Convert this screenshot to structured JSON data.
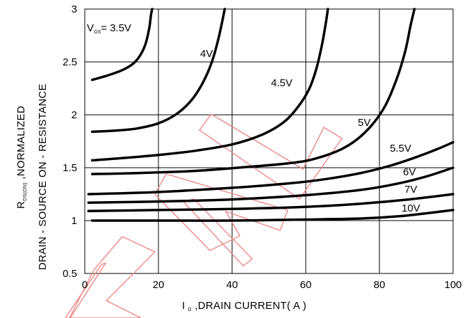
{
  "chart_data": {
    "type": "line",
    "xlabel": {
      "main": "I",
      "sub": "D",
      "rest": " ,DRAIN CURRENT( A )"
    },
    "ylabel": {
      "line1_main": "R",
      "line1_sub": "DS(ON)",
      "line1_rest": " ,NORMALIZED",
      "line2": "DRAIN - SOURCE ON - RESISTANCE"
    },
    "xlim": [
      0,
      100
    ],
    "ylim": [
      0.5,
      3
    ],
    "x_ticks": [
      0,
      20,
      40,
      60,
      80,
      100
    ],
    "y_ticks": [
      0.5,
      1,
      1.5,
      2,
      2.5,
      3
    ],
    "y_tick_labels": [
      "0.5",
      "1",
      "1.5",
      "2",
      "2.5",
      "3"
    ],
    "grid": true,
    "line_color": "#000000",
    "series": [
      {
        "name": "V_GS = 3.5V",
        "label": {
          "main": "V",
          "sub": "GS",
          "rest": "= 3.5V"
        },
        "x": [
          2,
          6,
          10,
          13,
          15,
          16.5,
          17.5,
          18,
          18.3
        ],
        "y": [
          2.33,
          2.37,
          2.42,
          2.48,
          2.56,
          2.67,
          2.82,
          2.95,
          3.0
        ]
      },
      {
        "name": "4V",
        "label": {
          "main": "4V"
        },
        "x": [
          2,
          8,
          14,
          20,
          25,
          29,
          32,
          34.5,
          36.5,
          38
        ],
        "y": [
          1.84,
          1.85,
          1.87,
          1.92,
          2.01,
          2.14,
          2.3,
          2.5,
          2.75,
          3.0
        ]
      },
      {
        "name": "4.5V",
        "label": {
          "main": "4.5V"
        },
        "x": [
          2,
          10,
          20,
          30,
          40,
          48,
          54,
          58,
          61,
          63,
          64.5,
          65.5,
          66
        ],
        "y": [
          1.57,
          1.59,
          1.62,
          1.66,
          1.72,
          1.81,
          1.93,
          2.08,
          2.25,
          2.45,
          2.68,
          2.88,
          3.0
        ]
      },
      {
        "name": "5V",
        "label": {
          "main": "5V"
        },
        "x": [
          2,
          15,
          30,
          45,
          55,
          62,
          70,
          76,
          81,
          84.5,
          87,
          88.5,
          89.5
        ],
        "y": [
          1.44,
          1.45,
          1.47,
          1.51,
          1.54,
          1.58,
          1.68,
          1.83,
          2.05,
          2.32,
          2.6,
          2.85,
          3.0
        ]
      },
      {
        "name": "5.5V",
        "label": {
          "main": "5.5V"
        },
        "x": [
          1,
          20,
          40,
          55,
          65,
          75,
          83,
          90,
          96,
          100
        ],
        "y": [
          1.25,
          1.27,
          1.31,
          1.35,
          1.39,
          1.45,
          1.52,
          1.6,
          1.68,
          1.74
        ]
      },
      {
        "name": "6V",
        "label": {
          "main": "6V"
        },
        "x": [
          1,
          20,
          40,
          60,
          75,
          85,
          93,
          100
        ],
        "y": [
          1.17,
          1.18,
          1.2,
          1.24,
          1.29,
          1.35,
          1.42,
          1.5
        ]
      },
      {
        "name": "7V",
        "label": {
          "main": "7V"
        },
        "x": [
          1,
          20,
          40,
          60,
          75,
          88,
          100
        ],
        "y": [
          1.09,
          1.1,
          1.11,
          1.13,
          1.16,
          1.2,
          1.25
        ]
      },
      {
        "name": "10V",
        "label": {
          "main": "10V"
        },
        "x": [
          2,
          20,
          40,
          60,
          75,
          85,
          93,
          100
        ],
        "y": [
          1.0,
          1.0,
          1.0,
          1.01,
          1.02,
          1.04,
          1.07,
          1.1
        ]
      }
    ],
    "watermark": {
      "text": "",
      "color": "#ee8888"
    }
  }
}
